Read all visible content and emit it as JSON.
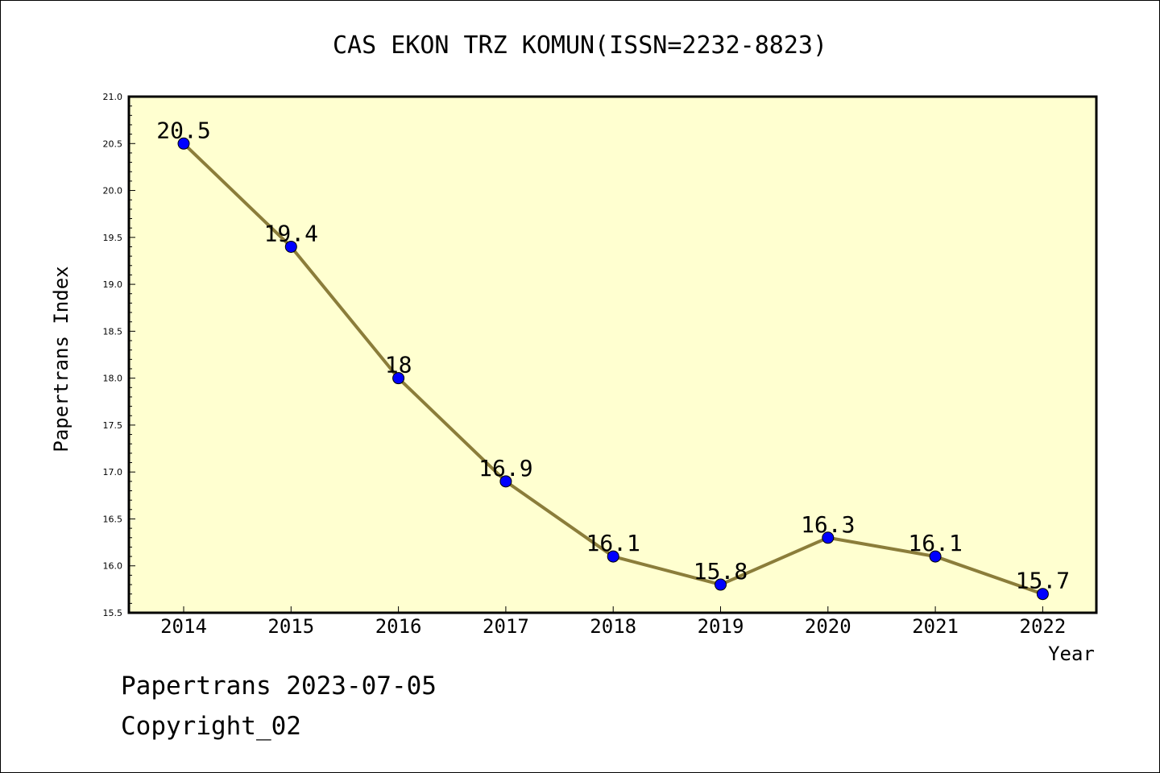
{
  "chart_data": {
    "type": "line",
    "title": "CAS EKON TRZ KOMUN(ISSN=2232-8823)",
    "xlabel": "Year",
    "ylabel": "Papertrans Index",
    "categories": [
      "2014",
      "2015",
      "2016",
      "2017",
      "2018",
      "2019",
      "2020",
      "2021",
      "2022"
    ],
    "values": [
      20.5,
      19.4,
      18,
      16.9,
      16.1,
      15.8,
      16.3,
      16.1,
      15.7
    ],
    "data_labels": [
      "20.5",
      "19.4",
      "18",
      "16.9",
      "16.1",
      "15.8",
      "16.3",
      "16.1",
      "15.7"
    ],
    "ylim": [
      15.5,
      21.0
    ],
    "yticks": [
      "15.5",
      "16.0",
      "16.5",
      "17.0",
      "17.5",
      "18.0",
      "18.5",
      "19.0",
      "19.5",
      "20.0",
      "20.5",
      "21.0"
    ],
    "grid": false,
    "colors": {
      "plot_background": "#ffffd0",
      "line": "#8b7d3a",
      "marker": "#0000ff"
    }
  },
  "footer": {
    "line1": "Papertrans 2023-07-05",
    "line2": "Copyright_02"
  }
}
